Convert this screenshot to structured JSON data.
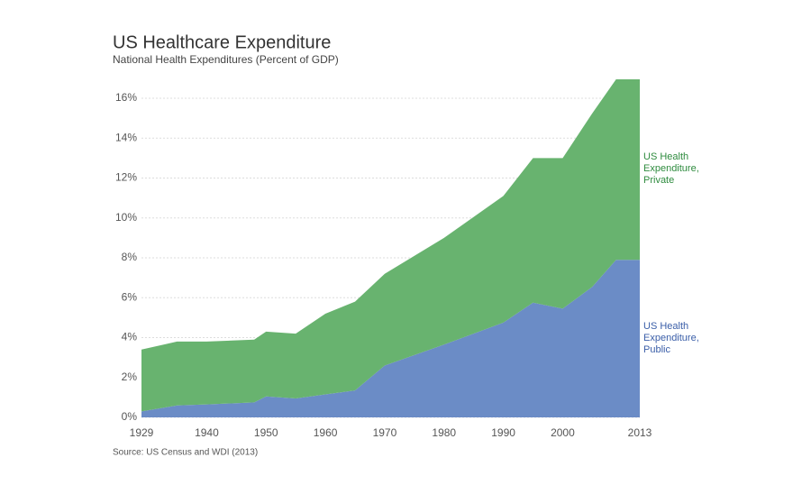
{
  "chart_data": {
    "type": "stacked_area",
    "title": "US Healthcare Expenditure",
    "subtitle": "National Health Expenditures (Percent of GDP)",
    "source": "Source: US Census and WDI (2013)",
    "x": [
      1929,
      1935,
      1940,
      1948,
      1950,
      1955,
      1960,
      1965,
      1970,
      1980,
      1990,
      1995,
      2000,
      2005,
      2009,
      2013
    ],
    "series": [
      {
        "name": "US Health Expenditure, Public",
        "color": "#6b8cc6",
        "label_color": "#3a5ea8",
        "values": [
          0.3,
          0.6,
          0.65,
          0.75,
          1.05,
          0.95,
          1.15,
          1.35,
          2.6,
          3.65,
          4.75,
          5.75,
          5.45,
          6.55,
          7.9,
          7.9
        ]
      },
      {
        "name": "US Health Expenditure, Private",
        "color": "#68b36f",
        "label_color": "#2e8b3e",
        "values": [
          3.1,
          3.2,
          3.15,
          3.15,
          3.25,
          3.25,
          4.05,
          4.45,
          4.6,
          5.35,
          6.35,
          7.25,
          7.55,
          8.7,
          9.05,
          9.05
        ]
      }
    ],
    "xlim": [
      1929,
      2013
    ],
    "xticks": [
      1929,
      1940,
      1950,
      1960,
      1970,
      1980,
      1990,
      2000,
      2013
    ],
    "ylim": [
      0,
      17
    ],
    "yticks": [
      {
        "value": 0,
        "label": "0%"
      },
      {
        "value": 2,
        "label": "2%"
      },
      {
        "value": 4,
        "label": "4%"
      },
      {
        "value": 6,
        "label": "6%"
      },
      {
        "value": 8,
        "label": "8%"
      },
      {
        "value": 10,
        "label": "10%"
      },
      {
        "value": 12,
        "label": "12%"
      },
      {
        "value": 14,
        "label": "14%"
      },
      {
        "value": 16,
        "label": "16%"
      }
    ],
    "grid": true
  }
}
